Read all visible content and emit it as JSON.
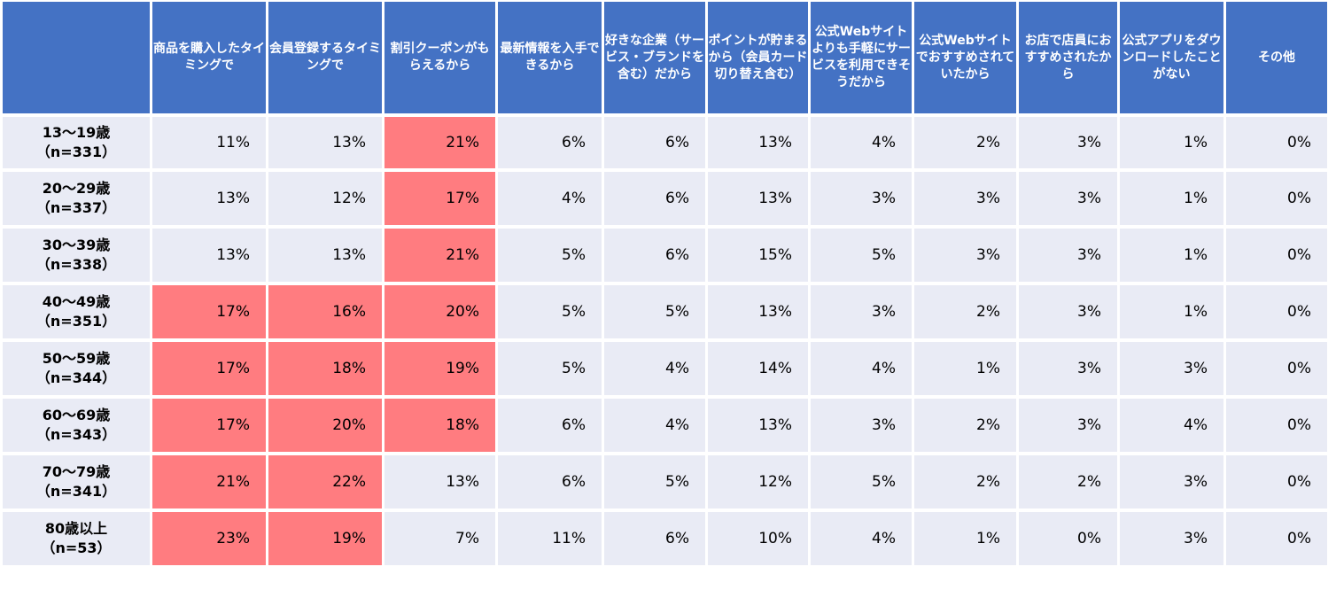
{
  "chart_data": {
    "type": "table",
    "colors": {
      "header": "#4472c4",
      "cell": "#e9ebf5",
      "highlight": "#ff7c80"
    },
    "columns": [
      "",
      "商品を購入したタイミングで",
      "会員登録するタイミングで",
      "割引クーポンがもらえるから",
      "最新情報を入手できるから",
      "好きな企業（サービス・ブランドを含む）だから",
      "ポイントが貯まるから（会員カード切り替え含む）",
      "公式Webサイトよりも手軽にサービスを利用できそうだから",
      "公式Webサイトでおすすめされていたから",
      "お店で店員におすすめされたから",
      "公式アプリをダウンロードしたことがない",
      "その他"
    ],
    "rows": [
      {
        "label": [
          "13〜19歳",
          "（n=331）"
        ],
        "values": [
          "11%",
          "13%",
          "21%",
          "6%",
          "6%",
          "13%",
          "4%",
          "2%",
          "3%",
          "1%",
          "0%"
        ],
        "highlight": [
          2
        ]
      },
      {
        "label": [
          "20〜29歳",
          "（n=337）"
        ],
        "values": [
          "13%",
          "12%",
          "17%",
          "4%",
          "6%",
          "13%",
          "3%",
          "3%",
          "3%",
          "1%",
          "0%"
        ],
        "highlight": [
          2
        ]
      },
      {
        "label": [
          "30〜39歳",
          "（n=338）"
        ],
        "values": [
          "13%",
          "13%",
          "21%",
          "5%",
          "6%",
          "15%",
          "5%",
          "3%",
          "3%",
          "1%",
          "0%"
        ],
        "highlight": [
          2
        ]
      },
      {
        "label": [
          "40〜49歳",
          "（n=351）"
        ],
        "values": [
          "17%",
          "16%",
          "20%",
          "5%",
          "5%",
          "13%",
          "3%",
          "2%",
          "3%",
          "1%",
          "0%"
        ],
        "highlight": [
          0,
          1,
          2
        ]
      },
      {
        "label": [
          "50〜59歳",
          "（n=344）"
        ],
        "values": [
          "17%",
          "18%",
          "19%",
          "5%",
          "4%",
          "14%",
          "4%",
          "1%",
          "3%",
          "3%",
          "0%"
        ],
        "highlight": [
          0,
          1,
          2
        ]
      },
      {
        "label": [
          "60〜69歳",
          "（n=343）"
        ],
        "values": [
          "17%",
          "20%",
          "18%",
          "6%",
          "4%",
          "13%",
          "3%",
          "2%",
          "3%",
          "4%",
          "0%"
        ],
        "highlight": [
          0,
          1,
          2
        ]
      },
      {
        "label": [
          "70〜79歳",
          "（n=341）"
        ],
        "values": [
          "21%",
          "22%",
          "13%",
          "6%",
          "5%",
          "12%",
          "5%",
          "2%",
          "2%",
          "3%",
          "0%"
        ],
        "highlight": [
          0,
          1
        ]
      },
      {
        "label": [
          "80歳以上",
          "（n=53）"
        ],
        "values": [
          "23%",
          "19%",
          "7%",
          "11%",
          "6%",
          "10%",
          "4%",
          "1%",
          "0%",
          "3%",
          "0%"
        ],
        "highlight": [
          0,
          1
        ]
      }
    ]
  }
}
